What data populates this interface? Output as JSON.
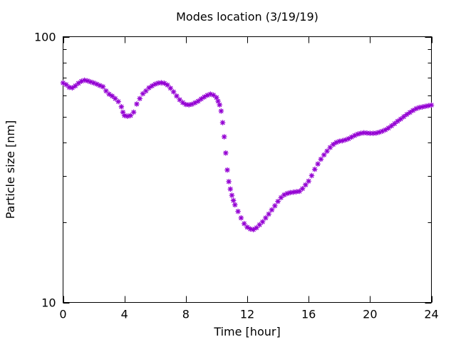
{
  "chart_data": {
    "type": "scatter",
    "title": "Modes location (3/19/19)",
    "xlabel": "Time [hour]",
    "ylabel": "Particle size [nm]",
    "xlim": [
      0,
      24
    ],
    "ylim": [
      10,
      100
    ],
    "yscale": "log",
    "grid": false,
    "legend": "none",
    "x_ticks": [
      0,
      4,
      8,
      12,
      16,
      20,
      24
    ],
    "x_tick_labels": [
      "0",
      "4",
      "8",
      "12",
      "16",
      "20",
      "24"
    ],
    "y_ticks": [
      10,
      100
    ],
    "y_tick_labels": [
      "10",
      "100"
    ],
    "marker": "asterisk",
    "colors": {
      "marker": "#9400d3",
      "axes": "#000000",
      "background": "#ffffff"
    },
    "series": [
      {
        "points": [
          [
            0.0,
            67
          ],
          [
            0.2,
            66
          ],
          [
            0.4,
            64.5
          ],
          [
            0.6,
            64.2
          ],
          [
            0.8,
            65.3
          ],
          [
            1.0,
            66.8
          ],
          [
            1.2,
            68
          ],
          [
            1.4,
            68.6
          ],
          [
            1.6,
            68.2
          ],
          [
            1.8,
            67.6
          ],
          [
            2.0,
            67
          ],
          [
            2.2,
            66.3
          ],
          [
            2.4,
            65.5
          ],
          [
            2.6,
            64.8
          ],
          [
            2.8,
            62.5
          ],
          [
            3.0,
            60.8
          ],
          [
            3.2,
            59.8
          ],
          [
            3.4,
            58.5
          ],
          [
            3.6,
            57
          ],
          [
            3.8,
            54.5
          ],
          [
            3.9,
            52
          ],
          [
            4.0,
            50.5
          ],
          [
            4.2,
            50.2
          ],
          [
            4.4,
            50.5
          ],
          [
            4.6,
            52
          ],
          [
            4.8,
            55.8
          ],
          [
            5.0,
            58.5
          ],
          [
            5.2,
            61
          ],
          [
            5.4,
            62.5
          ],
          [
            5.6,
            64.2
          ],
          [
            5.8,
            65.3
          ],
          [
            6.0,
            66.3
          ],
          [
            6.2,
            66.9
          ],
          [
            6.4,
            67.1
          ],
          [
            6.6,
            66.8
          ],
          [
            6.8,
            65.8
          ],
          [
            7.0,
            64
          ],
          [
            7.2,
            62
          ],
          [
            7.4,
            59.8
          ],
          [
            7.6,
            57.9
          ],
          [
            7.8,
            56.5
          ],
          [
            8.0,
            55.6
          ],
          [
            8.2,
            55.4
          ],
          [
            8.4,
            55.7
          ],
          [
            8.6,
            56.4
          ],
          [
            8.8,
            57.2
          ],
          [
            9.0,
            58.3
          ],
          [
            9.2,
            59.3
          ],
          [
            9.4,
            60.2
          ],
          [
            9.6,
            60.8
          ],
          [
            9.8,
            60.3
          ],
          [
            10.0,
            59.0
          ],
          [
            10.1,
            57.2
          ],
          [
            10.2,
            55.4
          ],
          [
            10.3,
            52.5
          ],
          [
            10.4,
            47.5
          ],
          [
            10.5,
            42
          ],
          [
            10.6,
            36.5
          ],
          [
            10.7,
            31.5
          ],
          [
            10.8,
            28.5
          ],
          [
            10.9,
            26.7
          ],
          [
            11.0,
            25.3
          ],
          [
            11.1,
            24.2
          ],
          [
            11.2,
            23.3
          ],
          [
            11.4,
            22
          ],
          [
            11.6,
            20.8
          ],
          [
            11.8,
            19.8
          ],
          [
            12.0,
            19.2
          ],
          [
            12.2,
            18.9
          ],
          [
            12.4,
            18.8
          ],
          [
            12.6,
            19.1
          ],
          [
            12.8,
            19.6
          ],
          [
            13.0,
            20.1
          ],
          [
            13.2,
            20.8
          ],
          [
            13.4,
            21.5
          ],
          [
            13.6,
            22.3
          ],
          [
            13.8,
            23.1
          ],
          [
            14.0,
            24.0
          ],
          [
            14.2,
            24.8
          ],
          [
            14.4,
            25.4
          ],
          [
            14.6,
            25.7
          ],
          [
            14.8,
            25.9
          ],
          [
            15.0,
            26.0
          ],
          [
            15.2,
            26.1
          ],
          [
            15.4,
            26.2
          ],
          [
            15.6,
            26.8
          ],
          [
            15.8,
            27.7
          ],
          [
            16.0,
            28.6
          ],
          [
            16.2,
            30.0
          ],
          [
            16.4,
            31.7
          ],
          [
            16.6,
            33.2
          ],
          [
            16.8,
            34.6
          ],
          [
            17.0,
            35.9
          ],
          [
            17.2,
            37.1
          ],
          [
            17.4,
            38.3
          ],
          [
            17.6,
            39.3
          ],
          [
            17.8,
            40.0
          ],
          [
            18.0,
            40.4
          ],
          [
            18.2,
            40.6
          ],
          [
            18.4,
            40.9
          ],
          [
            18.6,
            41.3
          ],
          [
            18.8,
            41.9
          ],
          [
            19.0,
            42.5
          ],
          [
            19.2,
            43.0
          ],
          [
            19.4,
            43.3
          ],
          [
            19.6,
            43.5
          ],
          [
            19.8,
            43.4
          ],
          [
            20.0,
            43.3
          ],
          [
            20.2,
            43.3
          ],
          [
            20.4,
            43.4
          ],
          [
            20.6,
            43.7
          ],
          [
            20.8,
            44.1
          ],
          [
            21.0,
            44.6
          ],
          [
            21.2,
            45.3
          ],
          [
            21.4,
            46.2
          ],
          [
            21.6,
            47.1
          ],
          [
            21.8,
            48.1
          ],
          [
            22.0,
            49.0
          ],
          [
            22.2,
            50.0
          ],
          [
            22.4,
            51.0
          ],
          [
            22.6,
            51.9
          ],
          [
            22.8,
            52.8
          ],
          [
            23.0,
            53.6
          ],
          [
            23.2,
            54.1
          ],
          [
            23.4,
            54.4
          ],
          [
            23.6,
            54.7
          ],
          [
            23.8,
            55.0
          ],
          [
            24.0,
            55.3
          ]
        ]
      }
    ]
  }
}
